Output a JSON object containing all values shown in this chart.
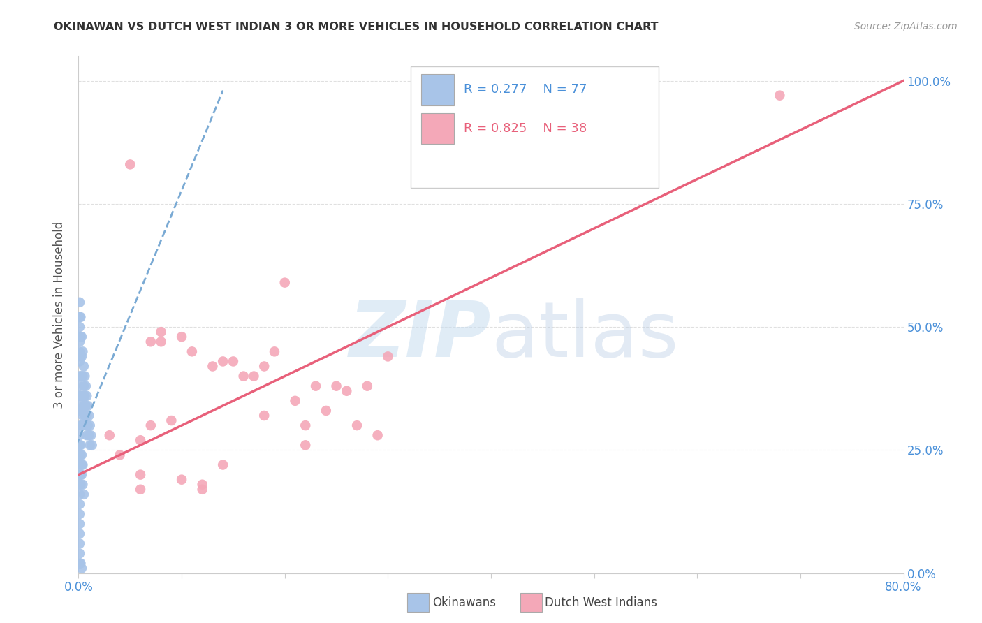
{
  "title": "OKINAWAN VS DUTCH WEST INDIAN 3 OR MORE VEHICLES IN HOUSEHOLD CORRELATION CHART",
  "source": "Source: ZipAtlas.com",
  "ylabel": "3 or more Vehicles in Household",
  "ylabel_right_ticks": [
    "0.0%",
    "25.0%",
    "50.0%",
    "75.0%",
    "100.0%"
  ],
  "ylabel_right_vals": [
    0.0,
    0.25,
    0.5,
    0.75,
    1.0
  ],
  "legend_blue_r": "0.277",
  "legend_blue_n": "77",
  "legend_pink_r": "0.825",
  "legend_pink_n": "38",
  "blue_color": "#a8c4e8",
  "pink_color": "#f4a8b8",
  "blue_line_color": "#7aaad4",
  "pink_line_color": "#e8607a",
  "title_color": "#333333",
  "source_color": "#999999",
  "legend_r_color_blue": "#4a90d9",
  "legend_n_color_blue": "#4a90d9",
  "legend_r_color_pink": "#e8607a",
  "legend_n_color_pink": "#e8607a",
  "grid_color": "#e0e0e0",
  "axis_color": "#cccccc",
  "xmin": 0.0,
  "xmax": 0.8,
  "ymin": 0.0,
  "ymax": 1.05,
  "blue_scatter_x": [
    0.001,
    0.001,
    0.001,
    0.001,
    0.001,
    0.001,
    0.001,
    0.001,
    0.001,
    0.001,
    0.001,
    0.001,
    0.002,
    0.002,
    0.002,
    0.002,
    0.002,
    0.002,
    0.002,
    0.003,
    0.003,
    0.003,
    0.003,
    0.003,
    0.003,
    0.004,
    0.004,
    0.004,
    0.004,
    0.005,
    0.005,
    0.005,
    0.005,
    0.006,
    0.006,
    0.006,
    0.007,
    0.007,
    0.007,
    0.008,
    0.008,
    0.008,
    0.009,
    0.009,
    0.01,
    0.01,
    0.011,
    0.011,
    0.012,
    0.013,
    0.001,
    0.001,
    0.001,
    0.001,
    0.002,
    0.002,
    0.002,
    0.003,
    0.003,
    0.004,
    0.001,
    0.001,
    0.001,
    0.002,
    0.002,
    0.003,
    0.004,
    0.005,
    0.001,
    0.001,
    0.001,
    0.001,
    0.001,
    0.001,
    0.001,
    0.002,
    0.003
  ],
  "blue_scatter_y": [
    0.55,
    0.52,
    0.5,
    0.48,
    0.47,
    0.45,
    0.43,
    0.4,
    0.38,
    0.36,
    0.35,
    0.33,
    0.52,
    0.48,
    0.44,
    0.4,
    0.36,
    0.33,
    0.3,
    0.48,
    0.44,
    0.4,
    0.36,
    0.33,
    0.3,
    0.45,
    0.4,
    0.36,
    0.32,
    0.42,
    0.38,
    0.34,
    0.3,
    0.4,
    0.36,
    0.32,
    0.38,
    0.34,
    0.3,
    0.36,
    0.32,
    0.28,
    0.34,
    0.3,
    0.32,
    0.28,
    0.3,
    0.26,
    0.28,
    0.26,
    0.28,
    0.26,
    0.24,
    0.22,
    0.26,
    0.24,
    0.22,
    0.24,
    0.22,
    0.22,
    0.2,
    0.18,
    0.16,
    0.2,
    0.18,
    0.2,
    0.18,
    0.16,
    0.14,
    0.12,
    0.1,
    0.08,
    0.06,
    0.04,
    0.02,
    0.02,
    0.01
  ],
  "pink_scatter_x": [
    0.68,
    0.03,
    0.04,
    0.05,
    0.06,
    0.07,
    0.07,
    0.08,
    0.09,
    0.1,
    0.11,
    0.12,
    0.13,
    0.14,
    0.15,
    0.16,
    0.17,
    0.18,
    0.19,
    0.2,
    0.21,
    0.22,
    0.23,
    0.24,
    0.25,
    0.26,
    0.27,
    0.28,
    0.29,
    0.3,
    0.06,
    0.08,
    0.1,
    0.14,
    0.18,
    0.22,
    0.06,
    0.12
  ],
  "pink_scatter_y": [
    0.97,
    0.28,
    0.24,
    0.83,
    0.27,
    0.3,
    0.47,
    0.49,
    0.31,
    0.19,
    0.45,
    0.18,
    0.42,
    0.43,
    0.43,
    0.4,
    0.4,
    0.42,
    0.45,
    0.59,
    0.35,
    0.3,
    0.38,
    0.33,
    0.38,
    0.37,
    0.3,
    0.38,
    0.28,
    0.44,
    0.17,
    0.47,
    0.48,
    0.22,
    0.32,
    0.26,
    0.2,
    0.17
  ],
  "blue_line_x": [
    -0.01,
    0.14
  ],
  "blue_line_y": [
    0.22,
    0.98
  ],
  "pink_line_x": [
    0.0,
    0.8
  ],
  "pink_line_y": [
    0.2,
    1.0
  ]
}
